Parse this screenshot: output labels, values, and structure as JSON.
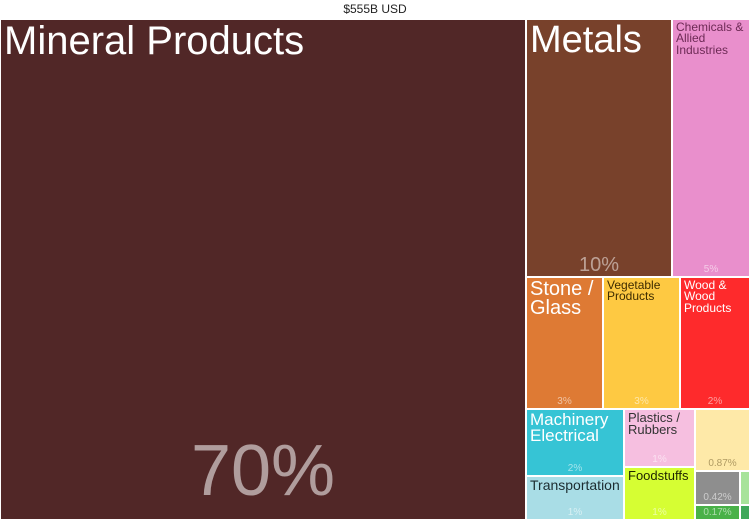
{
  "header": {
    "total": "$555B USD"
  },
  "chart_data": {
    "type": "treemap",
    "total_label": "$555B USD",
    "tiles": [
      {
        "name": "Mineral Products",
        "share": "70%",
        "color": "#512727"
      },
      {
        "name": "Metals",
        "share": "10%",
        "color": "#78412b"
      },
      {
        "name": "Chemicals & Allied Industries",
        "share": "5%",
        "color": "#e98fcc"
      },
      {
        "name": "Stone / Glass",
        "share": "3%",
        "color": "#de7a34"
      },
      {
        "name": "Vegetable Products",
        "share": "3%",
        "color": "#fec942"
      },
      {
        "name": "Wood & Wood Products",
        "share": "2%",
        "color": "#fe2a2c"
      },
      {
        "name": "Machinery Electrical",
        "share": "2%",
        "color": "#36c4d5"
      },
      {
        "name": "Plastics / Rubbers",
        "share": "1%",
        "color": "#f6bfe0"
      },
      {
        "name": "",
        "share": "0.87%",
        "color": "#fee9a8"
      },
      {
        "name": "Transportation",
        "share": "1%",
        "color": "#a9dde6"
      },
      {
        "name": "Foodstuffs",
        "share": "1%",
        "color": "#d6fe33"
      },
      {
        "name": "",
        "share": "0.42%",
        "color": "#8e8e8e"
      },
      {
        "name": "",
        "share": "0.17%",
        "color": "#49b148"
      },
      {
        "name": "",
        "share": "",
        "color": "#a7e39a"
      },
      {
        "name": "",
        "share": "",
        "color": "#3fa85a"
      }
    ]
  }
}
